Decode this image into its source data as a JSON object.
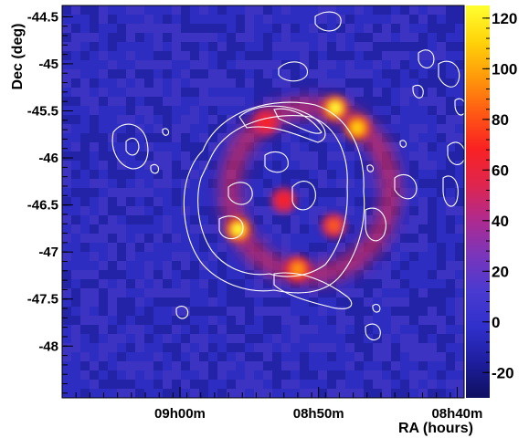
{
  "chart_data": {
    "type": "heatmap",
    "title": "",
    "xlabel": "RA (hours)",
    "ylabel": "Dec (deg)",
    "x_ticks": [
      "09h00m",
      "08h50m",
      "08h40m"
    ],
    "x_tick_values_min": [
      540,
      530,
      520
    ],
    "xlim_min": [
      548.5,
      519.5
    ],
    "y_ticks": [
      "-44.5",
      "-45",
      "-45.5",
      "-46",
      "-46.5",
      "-47",
      "-47.5",
      "-48"
    ],
    "y_tick_values": [
      -44.5,
      -45,
      -45.5,
      -46,
      -46.5,
      -47,
      -47.5,
      -48
    ],
    "ylim": [
      -48.55,
      -44.38
    ],
    "colorbar": {
      "ticks": [
        "120",
        "100",
        "80",
        "60",
        "40",
        "20",
        "0",
        "-20"
      ],
      "tick_values": [
        120,
        100,
        80,
        60,
        40,
        20,
        0,
        -20
      ],
      "range": [
        -30,
        125
      ],
      "colors": [
        "#0f0f60",
        "#1e1e9e",
        "#3030cc",
        "#4a3ad0",
        "#7a35bb",
        "#b02a8e",
        "#e0254d",
        "#fa2222",
        "#ff5a14",
        "#ff9a0a",
        "#ffd40a",
        "#ffff30"
      ]
    },
    "hotspots": [
      {
        "ra_min": 528.8,
        "dec": -45.47,
        "value": 118
      },
      {
        "ra_min": 527.2,
        "dec": -45.68,
        "value": 112
      },
      {
        "ra_min": 535.8,
        "dec": -46.76,
        "value": 118
      },
      {
        "ra_min": 531.5,
        "dec": -47.18,
        "value": 92
      },
      {
        "ra_min": 528.9,
        "dec": -46.72,
        "value": 78
      },
      {
        "ra_min": 532.5,
        "dec": -46.45,
        "value": 72
      },
      {
        "ra_min": 533.8,
        "dec": -45.62,
        "value": 72
      }
    ],
    "shell": {
      "ra_min": 530.6,
      "dec": -46.35,
      "radius_deg": 0.95,
      "value": 55
    },
    "background_value": 2
  }
}
